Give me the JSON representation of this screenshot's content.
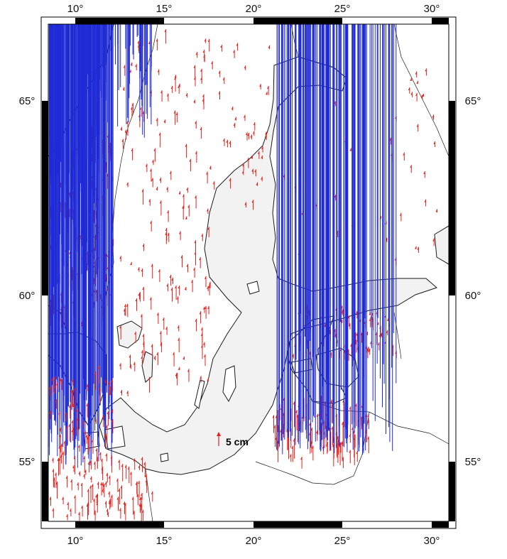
{
  "map": {
    "lon_labels": [
      "10°",
      "15°",
      "20°",
      "25°",
      "30°"
    ],
    "lat_labels": [
      "55°",
      "60°",
      "65°"
    ],
    "scale_label": "5 cm",
    "colors": {
      "uplift": "#e8201b",
      "subsidence": "#1f2bd6",
      "water": "#f2f2f2",
      "land": "#ffffff",
      "frame": "#000000"
    }
  },
  "chart_data": {
    "type": "vector-map",
    "lon_range": [
      8.3,
      31.2
    ],
    "lat_range": [
      53.2,
      67.1
    ],
    "lon_ticks": [
      10,
      15,
      20,
      25,
      30
    ],
    "lat_ticks": [
      55,
      60,
      65
    ],
    "legend": {
      "label": "5 cm",
      "length_cm": 5
    },
    "series": [
      {
        "color": "red",
        "direction": "up"
      },
      {
        "color": "blue",
        "direction": "down"
      }
    ]
  }
}
